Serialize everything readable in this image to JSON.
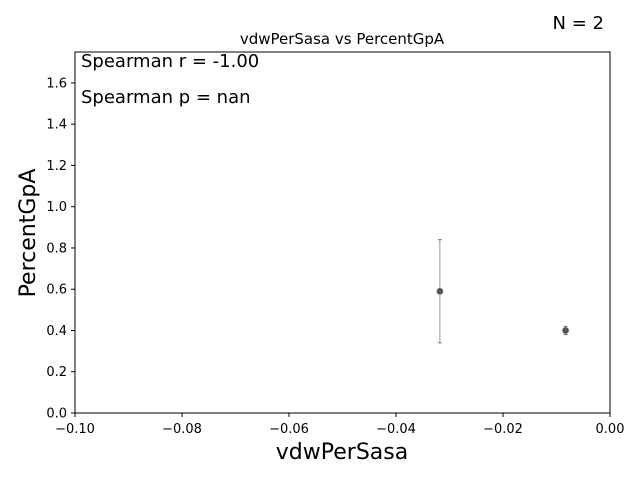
{
  "chart_data": {
    "type": "scatter",
    "title": "vdwPerSasa vs PercentGpA",
    "xlabel": "vdwPerSasa",
    "ylabel": "PercentGpA",
    "xlim": [
      -0.1,
      0.0
    ],
    "ylim": [
      0.0,
      1.75
    ],
    "x_ticks": [
      "−0.10",
      "−0.08",
      "−0.06",
      "−0.04",
      "−0.02",
      "0.00"
    ],
    "x_tick_values": [
      -0.1,
      -0.08,
      -0.06,
      -0.04,
      -0.02,
      0.0
    ],
    "y_ticks": [
      "0.0",
      "0.2",
      "0.4",
      "0.6",
      "0.8",
      "1.0",
      "1.2",
      "1.4",
      "1.6"
    ],
    "y_tick_values": [
      0.0,
      0.2,
      0.4,
      0.6,
      0.8,
      1.0,
      1.2,
      1.4,
      1.6
    ],
    "points": [
      {
        "x": -0.0318,
        "y": 0.59,
        "yerr": 0.25
      },
      {
        "x": -0.0083,
        "y": 0.4,
        "yerr": 0.02
      }
    ],
    "annotations": [
      "Spearman r = -1.00",
      "Spearman p = nan"
    ],
    "grid": false,
    "marker_color": "#555555"
  },
  "n_label": "N = 2"
}
